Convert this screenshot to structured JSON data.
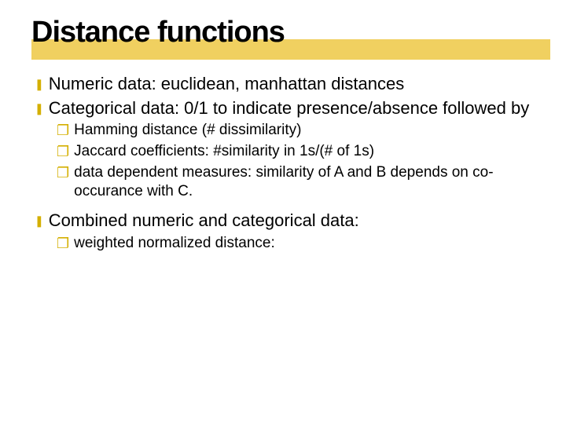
{
  "title": "Distance functions",
  "colors": {
    "bullet": "#d4af00",
    "underline": "#f0d060",
    "text": "#000000",
    "background": "#ffffff"
  },
  "items": [
    {
      "level": 1,
      "text": "Numeric data: euclidean, manhattan distances"
    },
    {
      "level": 1,
      "text": "Categorical data: 0/1 to indicate presence/absence followed by"
    },
    {
      "level": 2,
      "text": "Hamming distance (# dissimilarity)"
    },
    {
      "level": 2,
      "text": "Jaccard coefficients: #similarity in 1s/(# of 1s)"
    },
    {
      "level": 2,
      "text": "data dependent measures: similarity of A and B depends on co-occurance with C."
    },
    {
      "level": 1,
      "text": "Combined numeric and categorical data:"
    },
    {
      "level": 2,
      "text": "weighted normalized distance:"
    }
  ],
  "bullets": {
    "lvl1": "❚",
    "lvl2": "❐"
  }
}
